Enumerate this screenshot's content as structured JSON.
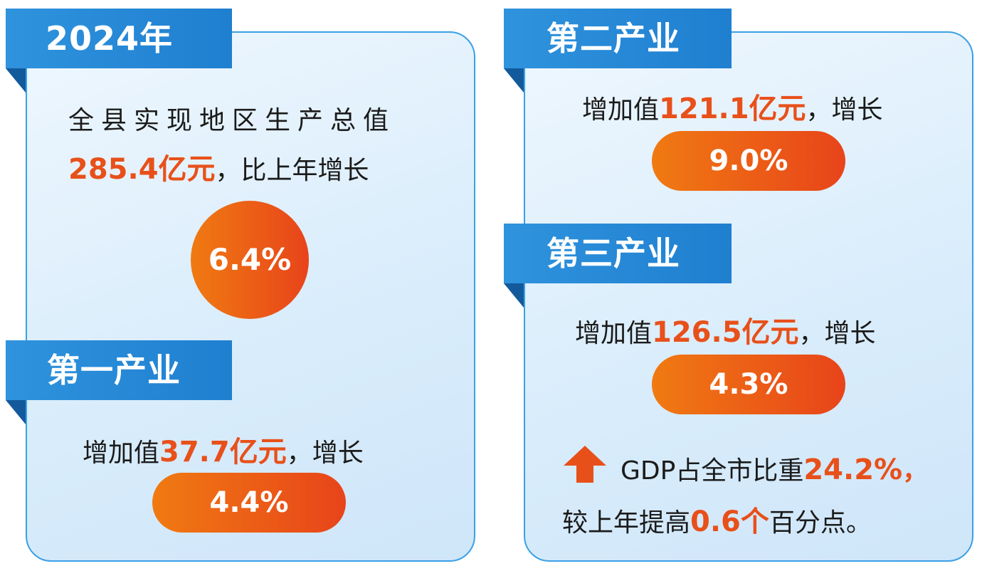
{
  "left": {
    "year_tab": "2024年",
    "gdp_line1": "全县实现地区生产总值",
    "gdp_value": "285.4亿元",
    "gdp_suffix": "，比上年增长",
    "gdp_growth": "6.4%",
    "primary": {
      "tab": "第一产业",
      "prefix": "增加值",
      "value": "37.7亿元",
      "suffix": "，增长",
      "growth": "4.4%"
    }
  },
  "right": {
    "secondary": {
      "tab": "第二产业",
      "prefix": "增加值",
      "value": "121.1亿元",
      "suffix": "，增长",
      "growth": "9.0%"
    },
    "tertiary": {
      "tab": "第三产业",
      "prefix": "增加值",
      "value": "126.5亿元",
      "suffix": "，增长",
      "growth": "4.3%"
    },
    "share": {
      "prefix": "GDP占全市比重",
      "value": "24.2%",
      "comma": "，",
      "line2_prefix": "较上年提高",
      "line2_value": "0.6个",
      "line2_suffix": "百分点。"
    }
  },
  "colors": {
    "accent_orange": "#e8501a",
    "tab_blue": "#1f7fd0",
    "panel_border": "#3aa0e6"
  },
  "icons": {
    "up_arrow": "up-arrow-icon"
  }
}
